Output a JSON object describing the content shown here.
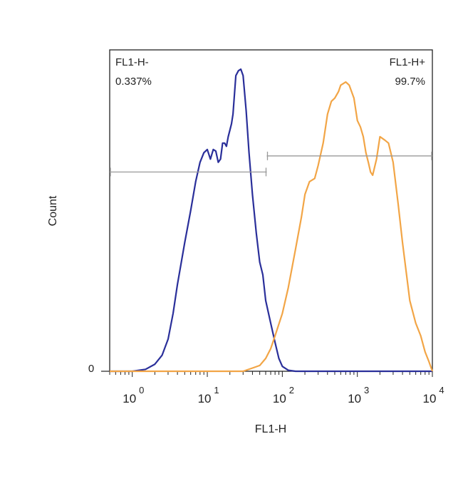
{
  "chart_data": {
    "type": "line",
    "xlabel": "FL1-H",
    "ylabel": "Count",
    "x_scale": "log",
    "xlim": [
      0.5,
      10000
    ],
    "ylim": [
      0,
      100
    ],
    "x_ticks": [
      {
        "base": "10",
        "exp": "0",
        "value": 1
      },
      {
        "base": "10",
        "exp": "1",
        "value": 10
      },
      {
        "base": "10",
        "exp": "2",
        "value": 100
      },
      {
        "base": "10",
        "exp": "3",
        "value": 1000
      },
      {
        "base": "10",
        "exp": "4",
        "value": 10000
      }
    ],
    "y_tick_label": "0",
    "gates": [
      {
        "label": "FL1-H-",
        "percent": "0.337%",
        "x_range": [
          0.5,
          62
        ],
        "y_level": 62
      },
      {
        "label": "FL1-H+",
        "percent": "99.7%",
        "x_range": [
          62,
          10000
        ],
        "y_level": 67
      }
    ],
    "series": [
      {
        "color": "#2a2f9a",
        "points": [
          [
            0.5,
            0
          ],
          [
            1.0,
            0
          ],
          [
            1.5,
            0.6
          ],
          [
            2.0,
            2.2
          ],
          [
            2.5,
            5
          ],
          [
            3.0,
            10
          ],
          [
            3.5,
            18
          ],
          [
            4.0,
            27
          ],
          [
            5.0,
            40
          ],
          [
            6.0,
            50
          ],
          [
            7.0,
            59
          ],
          [
            8.0,
            65
          ],
          [
            9.0,
            68
          ],
          [
            10,
            69
          ],
          [
            11,
            66
          ],
          [
            12,
            69
          ],
          [
            13,
            68.5
          ],
          [
            14,
            65
          ],
          [
            15,
            66
          ],
          [
            16,
            71
          ],
          [
            17,
            71
          ],
          [
            18,
            70
          ],
          [
            19,
            73
          ],
          [
            20,
            75
          ],
          [
            21,
            77
          ],
          [
            22,
            80
          ],
          [
            23,
            86
          ],
          [
            24,
            92
          ],
          [
            26,
            93.5
          ],
          [
            28,
            94
          ],
          [
            30,
            92
          ],
          [
            33,
            81
          ],
          [
            36,
            68
          ],
          [
            40,
            55
          ],
          [
            45,
            43
          ],
          [
            50,
            34
          ],
          [
            55,
            30
          ],
          [
            60,
            22
          ],
          [
            70,
            15
          ],
          [
            80,
            9
          ],
          [
            90,
            4
          ],
          [
            100,
            1.5
          ],
          [
            120,
            0.3
          ],
          [
            150,
            0
          ],
          [
            10000,
            0
          ]
        ]
      },
      {
        "color": "#f2a546",
        "points": [
          [
            0.5,
            0
          ],
          [
            30,
            0
          ],
          [
            40,
            1
          ],
          [
            50,
            1.8
          ],
          [
            60,
            4
          ],
          [
            70,
            7
          ],
          [
            80,
            11
          ],
          [
            100,
            18
          ],
          [
            120,
            26
          ],
          [
            150,
            38
          ],
          [
            180,
            48
          ],
          [
            200,
            55
          ],
          [
            230,
            59
          ],
          [
            270,
            60
          ],
          [
            300,
            64
          ],
          [
            350,
            71
          ],
          [
            400,
            80
          ],
          [
            450,
            84
          ],
          [
            500,
            85
          ],
          [
            560,
            87
          ],
          [
            600,
            89
          ],
          [
            700,
            90
          ],
          [
            780,
            89
          ],
          [
            900,
            85
          ],
          [
            1000,
            78
          ],
          [
            1100,
            76
          ],
          [
            1200,
            73
          ],
          [
            1300,
            68
          ],
          [
            1400,
            65
          ],
          [
            1500,
            62
          ],
          [
            1600,
            61
          ],
          [
            1800,
            66
          ],
          [
            2000,
            73
          ],
          [
            2300,
            72
          ],
          [
            2600,
            71
          ],
          [
            3000,
            65
          ],
          [
            3500,
            52
          ],
          [
            4000,
            40
          ],
          [
            5000,
            22
          ],
          [
            6000,
            15
          ],
          [
            7000,
            11
          ],
          [
            8000,
            6
          ],
          [
            9000,
            3
          ],
          [
            10000,
            0
          ]
        ]
      }
    ]
  }
}
